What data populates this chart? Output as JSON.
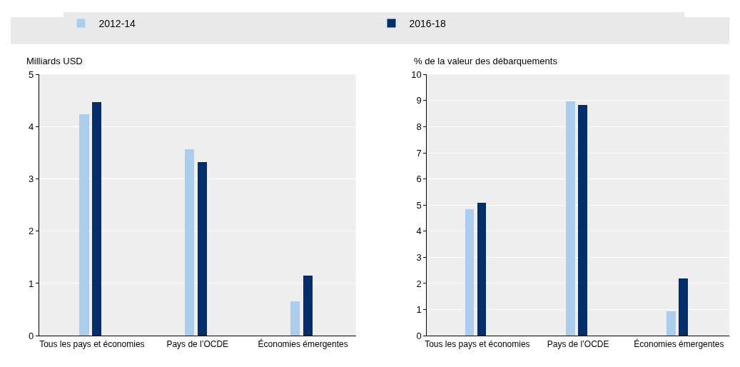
{
  "chart_data": [
    {
      "type": "bar",
      "ylabel": "Milliards USD",
      "categories": [
        "Tous les pays et économies",
        "Pays de l’OCDE",
        "Économies émergentes"
      ],
      "series": [
        {
          "name": "2012-14",
          "color": "#abcdee",
          "values": [
            4.24,
            3.57,
            0.66
          ]
        },
        {
          "name": "2016-18",
          "color": "#002f6c",
          "values": [
            4.47,
            3.32,
            1.15
          ]
        }
      ],
      "ylim": [
        0,
        5
      ],
      "yticks": [
        0,
        1,
        2,
        3,
        4,
        5
      ],
      "grid": "y",
      "legend": "top"
    },
    {
      "type": "bar",
      "ylabel": "% de la valeur des débarquements",
      "categories": [
        "Tous les pays et économies",
        "Pays de l’OCDE",
        "Économies émergentes"
      ],
      "series": [
        {
          "name": "2012-14",
          "color": "#abcdee",
          "values": [
            4.84,
            8.95,
            0.93
          ]
        },
        {
          "name": "2016-18",
          "color": "#002f6c",
          "values": [
            5.09,
            8.83,
            2.18
          ]
        }
      ],
      "ylim": [
        0,
        10
      ],
      "yticks": [
        0,
        1,
        2,
        3,
        4,
        5,
        6,
        7,
        8,
        9,
        10
      ],
      "grid": "y",
      "legend": "top"
    }
  ]
}
